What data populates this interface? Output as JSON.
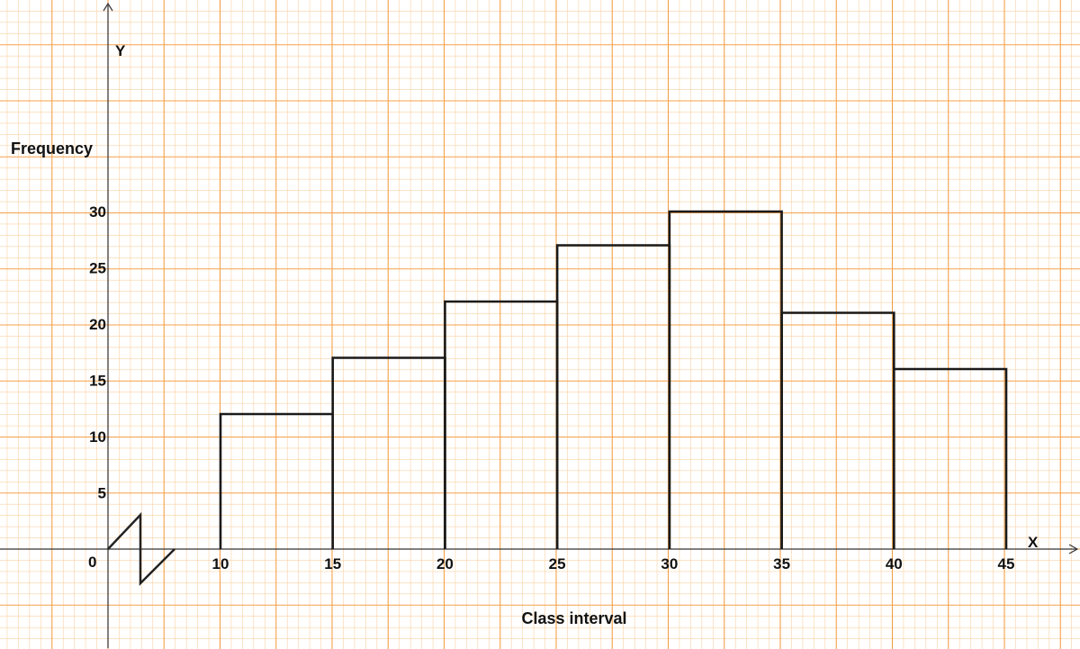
{
  "colors": {
    "background": "#ffffff",
    "grid_major": "#f5a14a",
    "grid_minor": "#f9d2a4",
    "bar_outline": "#1a1a1a",
    "axis": "#333333"
  },
  "chart_data": {
    "type": "bar",
    "title": "",
    "xlabel": "Class interval",
    "ylabel": "Frequency",
    "x_axis_letter": "X",
    "y_axis_letter": "Y",
    "origin_label": "0",
    "axis_break": "kink on x-axis between 0 and 10",
    "grid": true,
    "bins": [
      [
        10,
        15
      ],
      [
        15,
        20
      ],
      [
        20,
        25
      ],
      [
        25,
        30
      ],
      [
        30,
        35
      ],
      [
        35,
        40
      ],
      [
        40,
        45
      ]
    ],
    "values": [
      12,
      17,
      22,
      27,
      30,
      21,
      16
    ],
    "x_ticks": [
      "10",
      "15",
      "20",
      "25",
      "30",
      "35",
      "40",
      "45"
    ],
    "y_ticks": [
      "5",
      "10",
      "15",
      "20",
      "25",
      "30"
    ],
    "xlim": [
      10,
      45
    ],
    "ylim": [
      0,
      30
    ]
  }
}
